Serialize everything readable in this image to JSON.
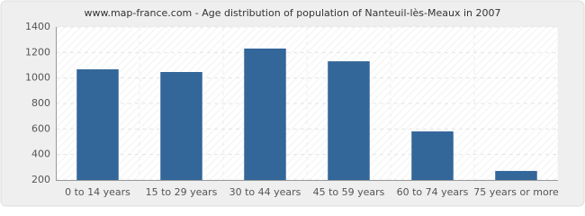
{
  "chart_data": {
    "type": "bar",
    "title": "www.map-france.com - Age distribution of population of Nanteuil-lès-Meaux in 2007",
    "categories": [
      "0 to 14 years",
      "15 to 29 years",
      "30 to 44 years",
      "45 to 59 years",
      "60 to 74 years",
      "75 years or more"
    ],
    "values": [
      1068,
      1047,
      1231,
      1131,
      581,
      271
    ],
    "color": "#336699",
    "ylim": [
      200,
      1400
    ],
    "yticks": [
      200,
      400,
      600,
      800,
      1000,
      1200,
      1400
    ],
    "grid": true
  }
}
